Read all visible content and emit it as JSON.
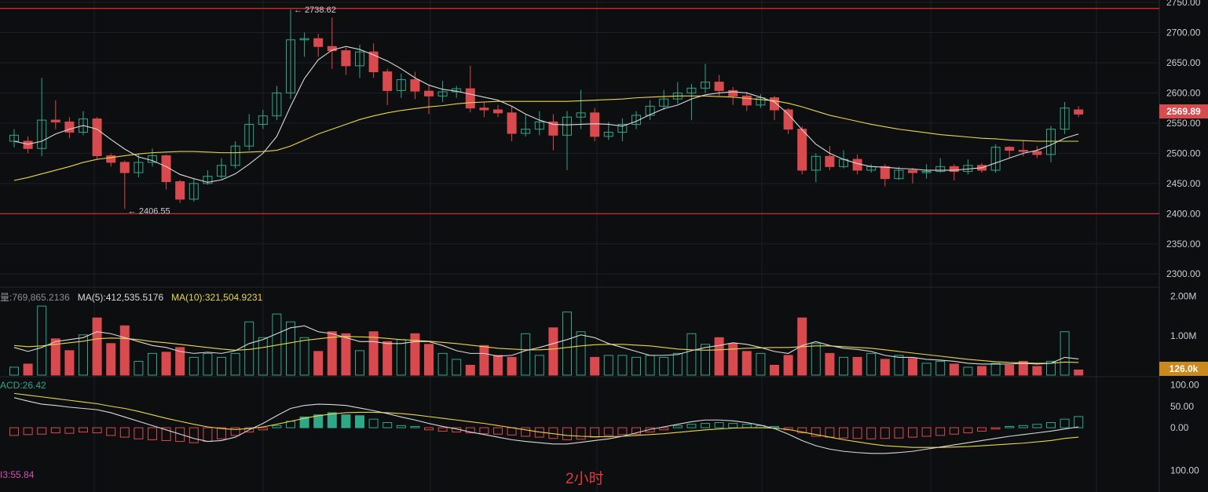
{
  "colors": {
    "up": "#2ea886",
    "down": "#d94a4f",
    "ma5": "#d9d9d9",
    "ma30": "#e8d64a",
    "hline": "#d9303a",
    "grid": "#1d1f24",
    "text": "#c9ccd2",
    "vol_tag": "#c98a1b",
    "last_tag": "#d94a4f"
  },
  "axis": {
    "price_ticks": [
      "2750.00",
      "2700.00",
      "2650.00",
      "2600.00",
      "2550.00",
      "2500.00",
      "2450.00",
      "2400.00",
      "2350.00",
      "2300.00"
    ],
    "volume_ticks": [
      "2.00M",
      "1.00M"
    ],
    "macd_ticks": [
      "100.00",
      "50.00",
      "0.00",
      "100.00"
    ]
  },
  "labels": {
    "high": "2738.62",
    "low": "2406.55",
    "last_price": "2569.89",
    "volume_current": "126.0k",
    "vol_header": "量:769,865.2136",
    "vol_ma5": "MA(5):412,535.5176",
    "vol_ma10": "MA(10):321,504.9231",
    "macd_header": "ACD:26.42",
    "rsi_header": "I3:55.84",
    "timeframe": "2小时"
  },
  "chart_data": {
    "type": "candlestick",
    "price_range": [
      2286,
      2754
    ],
    "hlines": [
      2740,
      2400
    ],
    "candles": [
      [
        2520,
        2530,
        2510,
        2540
      ],
      [
        2520,
        2508,
        2500,
        2528
      ],
      [
        2508,
        2555,
        2495,
        2625
      ],
      [
        2555,
        2552,
        2540,
        2588
      ],
      [
        2552,
        2535,
        2525,
        2560
      ],
      [
        2535,
        2557,
        2530,
        2570
      ],
      [
        2557,
        2496,
        2490,
        2560
      ],
      [
        2496,
        2485,
        2478,
        2500
      ],
      [
        2485,
        2468,
        2408,
        2488
      ],
      [
        2468,
        2485,
        2460,
        2498
      ],
      [
        2485,
        2496,
        2478,
        2508
      ],
      [
        2496,
        2453,
        2440,
        2498
      ],
      [
        2453,
        2424,
        2418,
        2456
      ],
      [
        2424,
        2450,
        2420,
        2458
      ],
      [
        2450,
        2462,
        2448,
        2472
      ],
      [
        2462,
        2480,
        2458,
        2492
      ],
      [
        2480,
        2512,
        2475,
        2520
      ],
      [
        2512,
        2548,
        2505,
        2565
      ],
      [
        2548,
        2562,
        2540,
        2572
      ],
      [
        2562,
        2600,
        2555,
        2612
      ],
      [
        2600,
        2688,
        2590,
        2738
      ],
      [
        2688,
        2690,
        2660,
        2700
      ],
      [
        2690,
        2677,
        2660,
        2698
      ],
      [
        2677,
        2670,
        2640,
        2725
      ],
      [
        2670,
        2645,
        2630,
        2675
      ],
      [
        2645,
        2668,
        2625,
        2680
      ],
      [
        2668,
        2635,
        2625,
        2682
      ],
      [
        2635,
        2604,
        2580,
        2640
      ],
      [
        2604,
        2622,
        2592,
        2632
      ],
      [
        2622,
        2603,
        2590,
        2635
      ],
      [
        2603,
        2595,
        2565,
        2612
      ],
      [
        2595,
        2602,
        2585,
        2620
      ],
      [
        2602,
        2607,
        2592,
        2612
      ],
      [
        2607,
        2575,
        2568,
        2645
      ],
      [
        2575,
        2572,
        2560,
        2585
      ],
      [
        2572,
        2567,
        2560,
        2580
      ],
      [
        2567,
        2533,
        2520,
        2578
      ],
      [
        2533,
        2540,
        2528,
        2565
      ],
      [
        2540,
        2552,
        2530,
        2570
      ],
      [
        2552,
        2530,
        2505,
        2565
      ],
      [
        2530,
        2560,
        2472,
        2570
      ],
      [
        2560,
        2567,
        2540,
        2605
      ],
      [
        2567,
        2528,
        2520,
        2575
      ],
      [
        2528,
        2535,
        2522,
        2552
      ],
      [
        2535,
        2548,
        2520,
        2558
      ],
      [
        2548,
        2563,
        2540,
        2570
      ],
      [
        2563,
        2578,
        2555,
        2588
      ],
      [
        2578,
        2590,
        2572,
        2605
      ],
      [
        2590,
        2600,
        2582,
        2618
      ],
      [
        2600,
        2608,
        2555,
        2615
      ],
      [
        2608,
        2618,
        2600,
        2648
      ],
      [
        2618,
        2604,
        2595,
        2630
      ],
      [
        2604,
        2595,
        2580,
        2610
      ],
      [
        2595,
        2580,
        2570,
        2602
      ],
      [
        2580,
        2592,
        2575,
        2598
      ],
      [
        2592,
        2572,
        2555,
        2595
      ],
      [
        2572,
        2540,
        2532,
        2575
      ],
      [
        2540,
        2472,
        2465,
        2545
      ],
      [
        2472,
        2495,
        2452,
        2500
      ],
      [
        2495,
        2478,
        2472,
        2512
      ],
      [
        2478,
        2490,
        2475,
        2505
      ],
      [
        2490,
        2472,
        2465,
        2498
      ],
      [
        2472,
        2478,
        2468,
        2482
      ],
      [
        2478,
        2458,
        2445,
        2482
      ],
      [
        2458,
        2472,
        2456,
        2478
      ],
      [
        2472,
        2468,
        2450,
        2476
      ],
      [
        2468,
        2470,
        2458,
        2482
      ],
      [
        2470,
        2478,
        2468,
        2492
      ],
      [
        2478,
        2470,
        2455,
        2482
      ],
      [
        2470,
        2480,
        2465,
        2490
      ],
      [
        2480,
        2472,
        2468,
        2484
      ],
      [
        2472,
        2510,
        2468,
        2515
      ],
      [
        2510,
        2505,
        2492,
        2512
      ],
      [
        2505,
        2503,
        2495,
        2522
      ],
      [
        2503,
        2498,
        2492,
        2512
      ],
      [
        2498,
        2540,
        2485,
        2545
      ],
      [
        2540,
        2575,
        2532,
        2585
      ],
      [
        2572,
        2565,
        2560,
        2578
      ]
    ],
    "ma_fast": [
      2520,
      2515,
      2520,
      2532,
      2540,
      2546,
      2540,
      2523,
      2507,
      2494,
      2488,
      2478,
      2465,
      2458,
      2452,
      2456,
      2466,
      2482,
      2500,
      2528,
      2578,
      2624,
      2655,
      2671,
      2677,
      2672,
      2663,
      2653,
      2640,
      2625,
      2613,
      2606,
      2603,
      2598,
      2593,
      2588,
      2578,
      2565,
      2555,
      2548,
      2547,
      2548,
      2549,
      2548,
      2545,
      2553,
      2564,
      2574,
      2580,
      2590,
      2597,
      2600,
      2602,
      2600,
      2593,
      2585,
      2565,
      2539,
      2515,
      2500,
      2490,
      2483,
      2478,
      2477,
      2475,
      2474,
      2472,
      2472,
      2472,
      2474,
      2476,
      2484,
      2492,
      2500,
      2505,
      2514,
      2525,
      2532
    ],
    "ma_slow": [
      2455,
      2460,
      2466,
      2472,
      2478,
      2485,
      2490,
      2493,
      2496,
      2499,
      2501,
      2502,
      2503,
      2503,
      2502,
      2501,
      2501,
      2502,
      2503,
      2505,
      2512,
      2522,
      2532,
      2540,
      2548,
      2556,
      2562,
      2567,
      2571,
      2574,
      2577,
      2579,
      2582,
      2584,
      2585,
      2586,
      2586,
      2586,
      2586,
      2586,
      2586,
      2587,
      2588,
      2589,
      2590,
      2592,
      2593,
      2594,
      2595,
      2595,
      2595,
      2594,
      2593,
      2591,
      2589,
      2587,
      2583,
      2577,
      2570,
      2563,
      2558,
      2553,
      2548,
      2544,
      2540,
      2537,
      2534,
      2531,
      2529,
      2527,
      2525,
      2524,
      2522,
      2521,
      2520,
      2520,
      2520,
      2520
    ],
    "volume": [
      0.2,
      0.28,
      1.75,
      0.92,
      0.62,
      1.02,
      1.45,
      0.8,
      1.25,
      0.35,
      0.55,
      0.58,
      0.7,
      0.45,
      0.55,
      0.45,
      0.55,
      1.35,
      0.95,
      1.55,
      1.35,
      0.95,
      0.6,
      1.1,
      1.05,
      0.62,
      1.1,
      0.85,
      0.9,
      1.05,
      0.78,
      0.55,
      0.4,
      0.25,
      0.75,
      0.5,
      0.45,
      1.05,
      0.5,
      1.2,
      1.6,
      1.1,
      0.45,
      0.5,
      0.5,
      0.45,
      0.5,
      0.45,
      0.55,
      1.05,
      0.78,
      0.95,
      0.8,
      0.6,
      0.55,
      0.25,
      0.5,
      1.45,
      0.8,
      0.55,
      0.45,
      0.45,
      0.55,
      0.4,
      0.5,
      0.42,
      0.3,
      0.35,
      0.28,
      0.2,
      0.22,
      0.3,
      0.25,
      0.35,
      0.22,
      0.35,
      1.1,
      0.13
    ],
    "vol_ma5": [
      0.7,
      0.6,
      0.7,
      0.85,
      0.9,
      0.95,
      1.1,
      1.05,
      0.95,
      0.85,
      0.75,
      0.7,
      0.6,
      0.55,
      0.58,
      0.55,
      0.62,
      0.8,
      0.9,
      1.05,
      1.2,
      1.25,
      1.1,
      1.05,
      0.95,
      0.85,
      0.85,
      0.8,
      0.8,
      0.85,
      0.85,
      0.75,
      0.62,
      0.55,
      0.55,
      0.48,
      0.5,
      0.62,
      0.7,
      0.8,
      0.9,
      1.02,
      0.95,
      0.8,
      0.7,
      0.6,
      0.5,
      0.5,
      0.52,
      0.62,
      0.7,
      0.75,
      0.82,
      0.78,
      0.7,
      0.6,
      0.55,
      0.75,
      0.85,
      0.75,
      0.68,
      0.65,
      0.6,
      0.5,
      0.45,
      0.45,
      0.4,
      0.38,
      0.35,
      0.3,
      0.28,
      0.28,
      0.28,
      0.3,
      0.28,
      0.3,
      0.45,
      0.41
    ],
    "vol_ma10": [
      0.75,
      0.72,
      0.74,
      0.78,
      0.82,
      0.86,
      0.92,
      0.94,
      0.93,
      0.9,
      0.85,
      0.82,
      0.78,
      0.74,
      0.7,
      0.66,
      0.63,
      0.65,
      0.7,
      0.76,
      0.82,
      0.88,
      0.92,
      0.96,
      0.98,
      0.97,
      0.96,
      0.93,
      0.9,
      0.88,
      0.86,
      0.83,
      0.8,
      0.76,
      0.72,
      0.68,
      0.66,
      0.64,
      0.64,
      0.66,
      0.7,
      0.74,
      0.77,
      0.78,
      0.78,
      0.76,
      0.74,
      0.7,
      0.66,
      0.64,
      0.63,
      0.64,
      0.66,
      0.68,
      0.69,
      0.7,
      0.7,
      0.72,
      0.74,
      0.74,
      0.72,
      0.7,
      0.68,
      0.64,
      0.6,
      0.56,
      0.52,
      0.48,
      0.44,
      0.4,
      0.37,
      0.34,
      0.32,
      0.31,
      0.3,
      0.3,
      0.33,
      0.32
    ],
    "macd_range": [
      -150,
      110
    ],
    "macd_hist": [
      -18,
      -16,
      -15,
      -12,
      -13,
      -10,
      -12,
      -18,
      -22,
      -26,
      -28,
      -30,
      -32,
      -35,
      -32,
      -26,
      -18,
      -10,
      -5,
      5,
      15,
      25,
      30,
      35,
      30,
      28,
      20,
      12,
      5,
      3,
      -5,
      -8,
      -10,
      -12,
      -14,
      -15,
      -17,
      -20,
      -22,
      -25,
      -28,
      -27,
      -22,
      -18,
      -16,
      -15,
      -10,
      -5,
      5,
      8,
      10,
      12,
      10,
      8,
      5,
      3,
      -5,
      -12,
      -20,
      -22,
      -24,
      -25,
      -26,
      -25,
      -24,
      -22,
      -20,
      -18,
      -15,
      -12,
      -8,
      -3,
      3,
      5,
      8,
      12,
      20,
      26
    ],
    "macd_dif": [
      70,
      62,
      55,
      52,
      48,
      45,
      42,
      35,
      25,
      15,
      5,
      -5,
      -15,
      -25,
      -32,
      -30,
      -22,
      -5,
      10,
      28,
      45,
      52,
      55,
      54,
      52,
      46,
      40,
      33,
      25,
      18,
      10,
      3,
      -3,
      -10,
      -16,
      -22,
      -28,
      -32,
      -35,
      -38,
      -38,
      -34,
      -30,
      -26,
      -20,
      -12,
      -4,
      2,
      8,
      14,
      18,
      18,
      16,
      12,
      6,
      -2,
      -15,
      -30,
      -42,
      -50,
      -55,
      -58,
      -60,
      -60,
      -58,
      -55,
      -50,
      -45,
      -40,
      -35,
      -30,
      -25,
      -20,
      -16,
      -12,
      -8,
      -3,
      2
    ],
    "macd_dea": [
      80,
      76,
      72,
      68,
      64,
      60,
      56,
      50,
      45,
      38,
      30,
      22,
      15,
      8,
      2,
      -2,
      -4,
      -2,
      2,
      8,
      15,
      22,
      28,
      32,
      35,
      36,
      36,
      35,
      33,
      30,
      26,
      22,
      18,
      14,
      10,
      5,
      0,
      -5,
      -10,
      -14,
      -18,
      -20,
      -21,
      -21,
      -20,
      -18,
      -16,
      -14,
      -11,
      -8,
      -5,
      -3,
      -1,
      0,
      0,
      -1,
      -4,
      -10,
      -16,
      -22,
      -28,
      -33,
      -38,
      -42,
      -44,
      -46,
      -46,
      -46,
      -45,
      -44,
      -42,
      -40,
      -38,
      -36,
      -33,
      -30,
      -25,
      -22
    ]
  }
}
